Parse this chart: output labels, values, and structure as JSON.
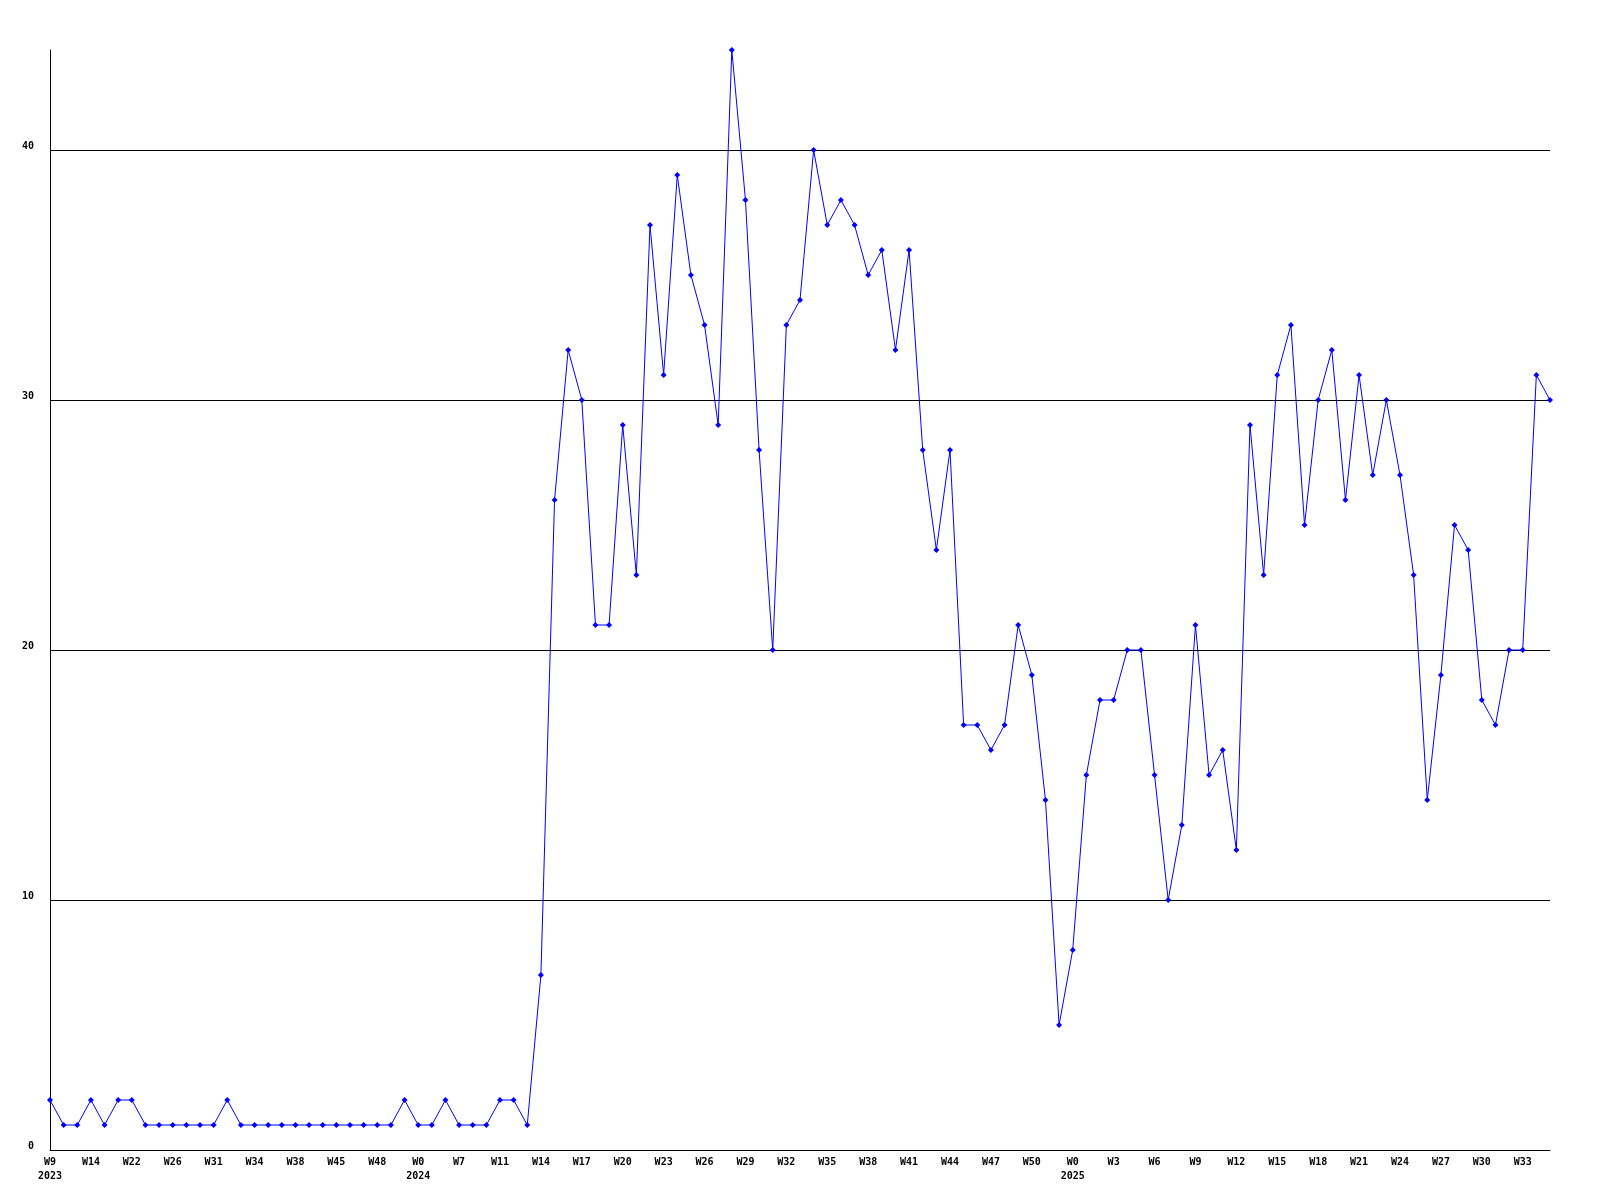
{
  "chart_data": {
    "type": "line",
    "categories": [
      "W9\n2023",
      null,
      null,
      "W14",
      null,
      null,
      "W22",
      null,
      null,
      "W26",
      null,
      null,
      "W31",
      null,
      null,
      "W34",
      null,
      null,
      "W38",
      null,
      null,
      "W45",
      null,
      null,
      "W48",
      null,
      null,
      "W0\n2024",
      null,
      null,
      "W7",
      null,
      null,
      "W11",
      null,
      null,
      "W14",
      null,
      null,
      "W17",
      null,
      null,
      "W20",
      null,
      null,
      "W23",
      null,
      null,
      "W26",
      null,
      null,
      "W29",
      null,
      null,
      "W32",
      null,
      null,
      "W35",
      null,
      null,
      "W38",
      null,
      null,
      "W41",
      null,
      null,
      "W44",
      null,
      null,
      "W47",
      null,
      null,
      "W50",
      null,
      null,
      "W0\n2025",
      null,
      null,
      "W3",
      null,
      null,
      "W6",
      null,
      null,
      "W9",
      null,
      null,
      "W12",
      null,
      null,
      "W15",
      null,
      null,
      "W18",
      null,
      null,
      "W21",
      null,
      null,
      "W24",
      null,
      null,
      "W27",
      null,
      null,
      "W30",
      null,
      null,
      "W33",
      null,
      null
    ],
    "series": [
      {
        "color": "#0000ff",
        "values": [
          2,
          1,
          1,
          2,
          1,
          2,
          2,
          1,
          1,
          1,
          1,
          1,
          1,
          2,
          1,
          1,
          1,
          1,
          1,
          1,
          1,
          1,
          1,
          1,
          1,
          1,
          2,
          1,
          1,
          2,
          1,
          1,
          1,
          2,
          2,
          1,
          7,
          26,
          32,
          30,
          21,
          21,
          29,
          23,
          37,
          31,
          39,
          35,
          33,
          29,
          44,
          38,
          28,
          20,
          33,
          34,
          40,
          37,
          38,
          37,
          35,
          36,
          32,
          36,
          28,
          24,
          28,
          17,
          17,
          16,
          17,
          21,
          19,
          14,
          5,
          8,
          15,
          18,
          18,
          20,
          20,
          15,
          10,
          13,
          21,
          15,
          16,
          12,
          29,
          23,
          31,
          33,
          25,
          30,
          32,
          26,
          31,
          27,
          30,
          27,
          23,
          14,
          19,
          25,
          24,
          18,
          17,
          20,
          20,
          31,
          30
        ]
      }
    ],
    "ylim": [
      0,
      44
    ],
    "yticks": [
      0,
      10,
      20,
      30,
      40
    ],
    "grid": "y",
    "marker": "diamond",
    "line_style": "solid"
  }
}
